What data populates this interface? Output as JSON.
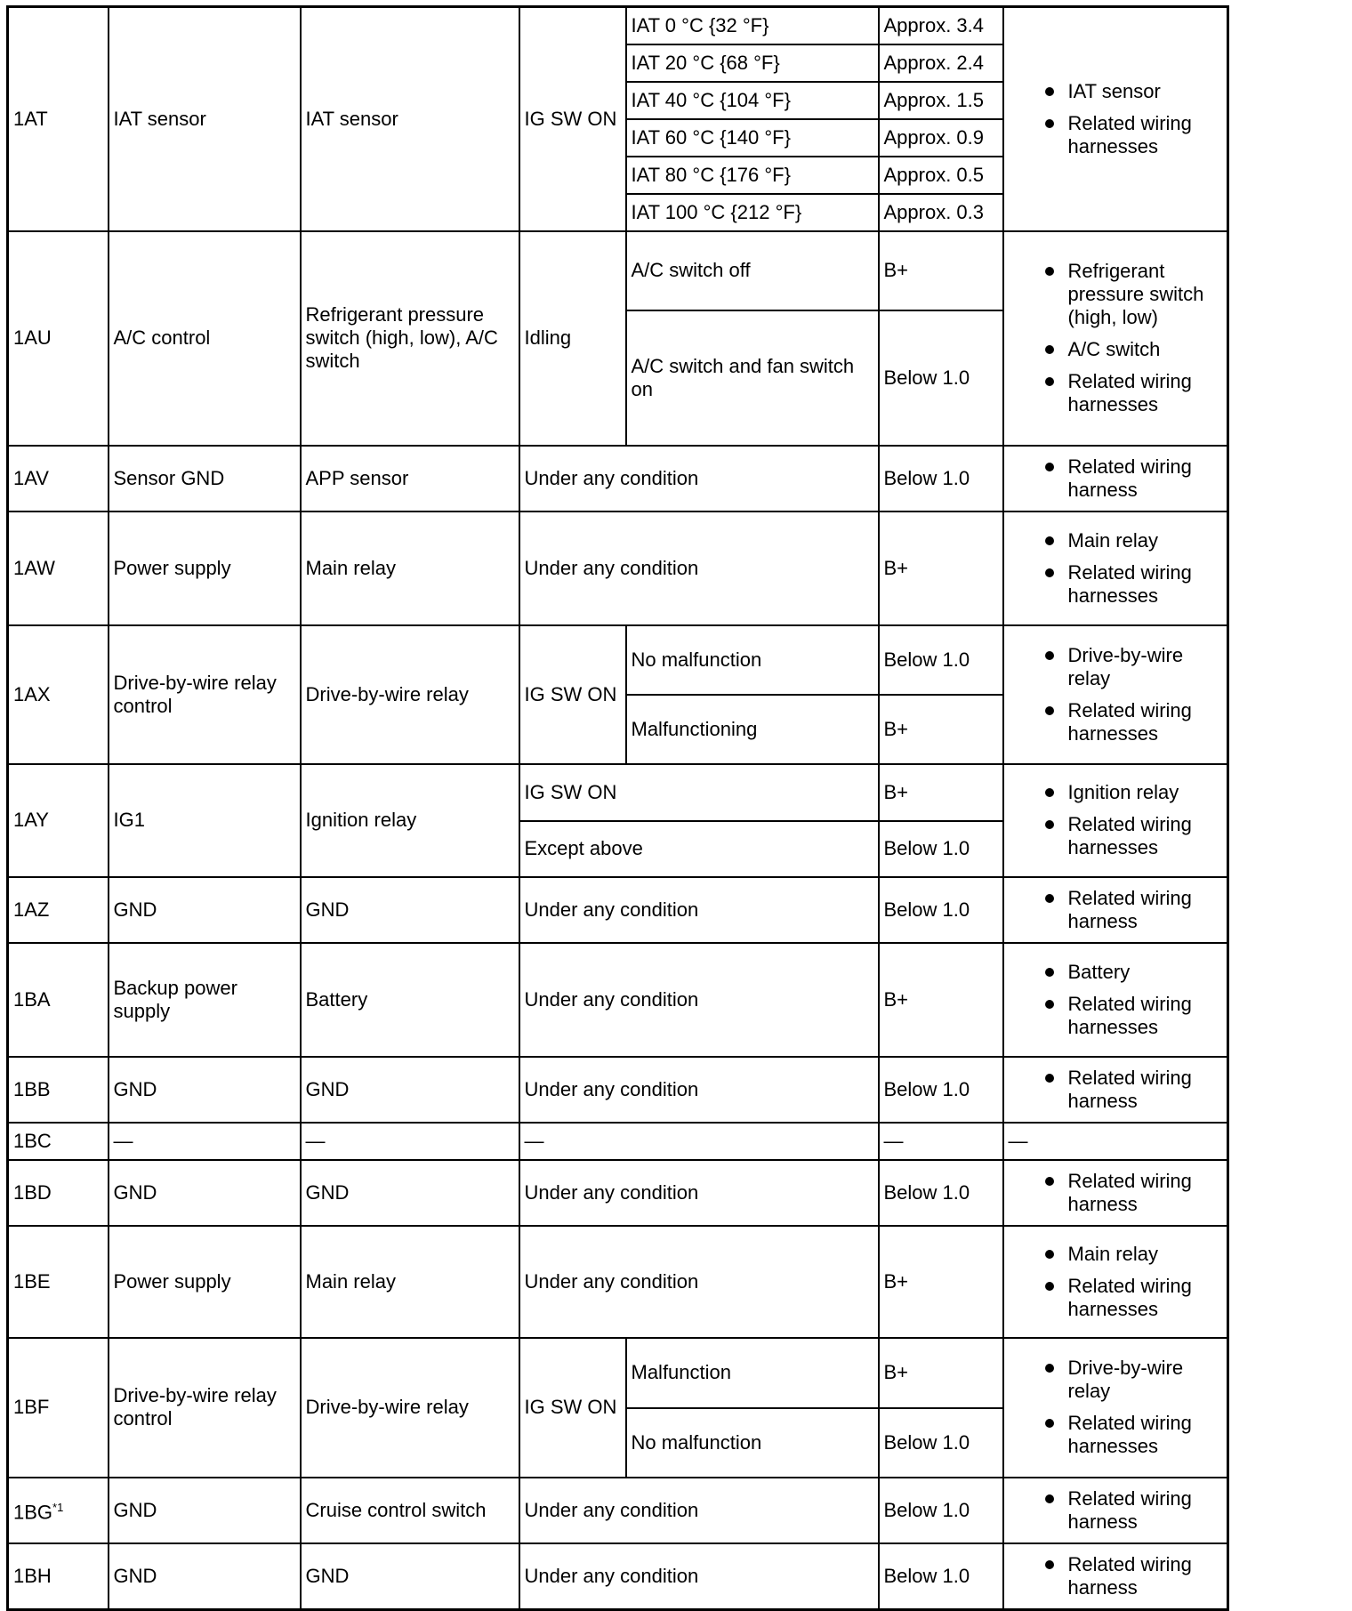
{
  "rows": [
    {
      "terminal": "1AT",
      "description": "IAT sensor",
      "connected_to": "IAT sensor",
      "condition": "IG SW ON",
      "subs": [
        {
          "condition": "IAT 0 °C {32 °F}",
          "voltage": "Approx. 3.4"
        },
        {
          "condition": "IAT 20 °C {68 °F}",
          "voltage": "Approx. 2.4"
        },
        {
          "condition": "IAT 40 °C {104 °F}",
          "voltage": "Approx. 1.5"
        },
        {
          "condition": "IAT 60 °C {140 °F}",
          "voltage": "Approx. 0.9"
        },
        {
          "condition": "IAT 80 °C {176 °F}",
          "voltage": "Approx. 0.5"
        },
        {
          "condition": "IAT 100 °C {212 °F}",
          "voltage": "Approx. 0.3"
        }
      ],
      "inspection": [
        "IAT sensor",
        "Related wiring harnesses"
      ]
    },
    {
      "terminal": "1AU",
      "description": "A/C control",
      "connected_to": "Refrigerant pressure switch (high, low), A/C switch",
      "condition": "Idling",
      "subs": [
        {
          "condition": "A/C switch off",
          "voltage": "B+"
        },
        {
          "condition": "A/C switch and fan switch on",
          "voltage": "Below 1.0"
        }
      ],
      "inspection": [
        "Refrigerant pressure switch (high, low)",
        "A/C switch",
        "Related wiring harnesses"
      ]
    },
    {
      "terminal": "1AV",
      "description": "Sensor GND",
      "connected_to": "APP sensor",
      "subs": [
        {
          "condition": "Under any condition",
          "voltage": "Below 1.0"
        }
      ],
      "inspection": [
        "Related wiring harness"
      ]
    },
    {
      "terminal": "1AW",
      "description": "Power supply",
      "connected_to": "Main relay",
      "subs": [
        {
          "condition": "Under any condition",
          "voltage": "B+"
        }
      ],
      "inspection": [
        "Main relay",
        "Related wiring harnesses"
      ]
    },
    {
      "terminal": "1AX",
      "description": "Drive-by-wire relay control",
      "connected_to": "Drive-by-wire relay",
      "condition": "IG SW ON",
      "subs": [
        {
          "condition": "No malfunction",
          "voltage": "Below 1.0"
        },
        {
          "condition": "Malfunctioning",
          "voltage": "B+"
        }
      ],
      "inspection": [
        "Drive-by-wire relay",
        "Related wiring harnesses"
      ]
    },
    {
      "terminal": "1AY",
      "description": "IG1",
      "connected_to": "Ignition relay",
      "subs": [
        {
          "condition": "IG SW ON",
          "voltage": "B+"
        },
        {
          "condition": "Except above",
          "voltage": "Below 1.0"
        }
      ],
      "inspection": [
        "Ignition relay",
        "Related wiring harnesses"
      ]
    },
    {
      "terminal": "1AZ",
      "description": "GND",
      "connected_to": "GND",
      "subs": [
        {
          "condition": "Under any condition",
          "voltage": "Below 1.0"
        }
      ],
      "inspection": [
        "Related wiring harness"
      ]
    },
    {
      "terminal": "1BA",
      "description": "Backup power supply",
      "connected_to": "Battery",
      "subs": [
        {
          "condition": "Under any condition",
          "voltage": "B+"
        }
      ],
      "inspection": [
        "Battery",
        "Related wiring harnesses"
      ]
    },
    {
      "terminal": "1BB",
      "description": "GND",
      "connected_to": "GND",
      "subs": [
        {
          "condition": "Under any condition",
          "voltage": "Below 1.0"
        }
      ],
      "inspection": [
        "Related wiring harness"
      ]
    },
    {
      "terminal": "1BC",
      "description": "—",
      "connected_to": "—",
      "subs": [
        {
          "condition": "—",
          "voltage": "—"
        }
      ],
      "inspection_text": "—"
    },
    {
      "terminal": "1BD",
      "description": "GND",
      "connected_to": "GND",
      "subs": [
        {
          "condition": "Under any condition",
          "voltage": "Below 1.0"
        }
      ],
      "inspection": [
        "Related wiring harness"
      ]
    },
    {
      "terminal": "1BE",
      "description": "Power supply",
      "connected_to": "Main relay",
      "subs": [
        {
          "condition": "Under any condition",
          "voltage": "B+"
        }
      ],
      "inspection": [
        "Main relay",
        "Related wiring harnesses"
      ]
    },
    {
      "terminal": "1BF",
      "description": "Drive-by-wire relay control",
      "connected_to": "Drive-by-wire relay",
      "condition": "IG SW ON",
      "subs": [
        {
          "condition": "Malfunction",
          "voltage": "B+"
        },
        {
          "condition": "No malfunction",
          "voltage": "Below 1.0"
        }
      ],
      "inspection": [
        "Drive-by-wire relay",
        "Related wiring harnesses"
      ]
    },
    {
      "terminal": "1BG",
      "terminal_note": "*1",
      "description": "GND",
      "connected_to": "Cruise control switch",
      "subs": [
        {
          "condition": "Under any condition",
          "voltage": "Below 1.0"
        }
      ],
      "inspection": [
        "Related wiring harness"
      ]
    },
    {
      "terminal": "1BH",
      "description": "GND",
      "connected_to": "GND",
      "subs": [
        {
          "condition": "Under any condition",
          "voltage": "Below 1.0"
        }
      ],
      "inspection": [
        "Related wiring harness"
      ]
    }
  ]
}
